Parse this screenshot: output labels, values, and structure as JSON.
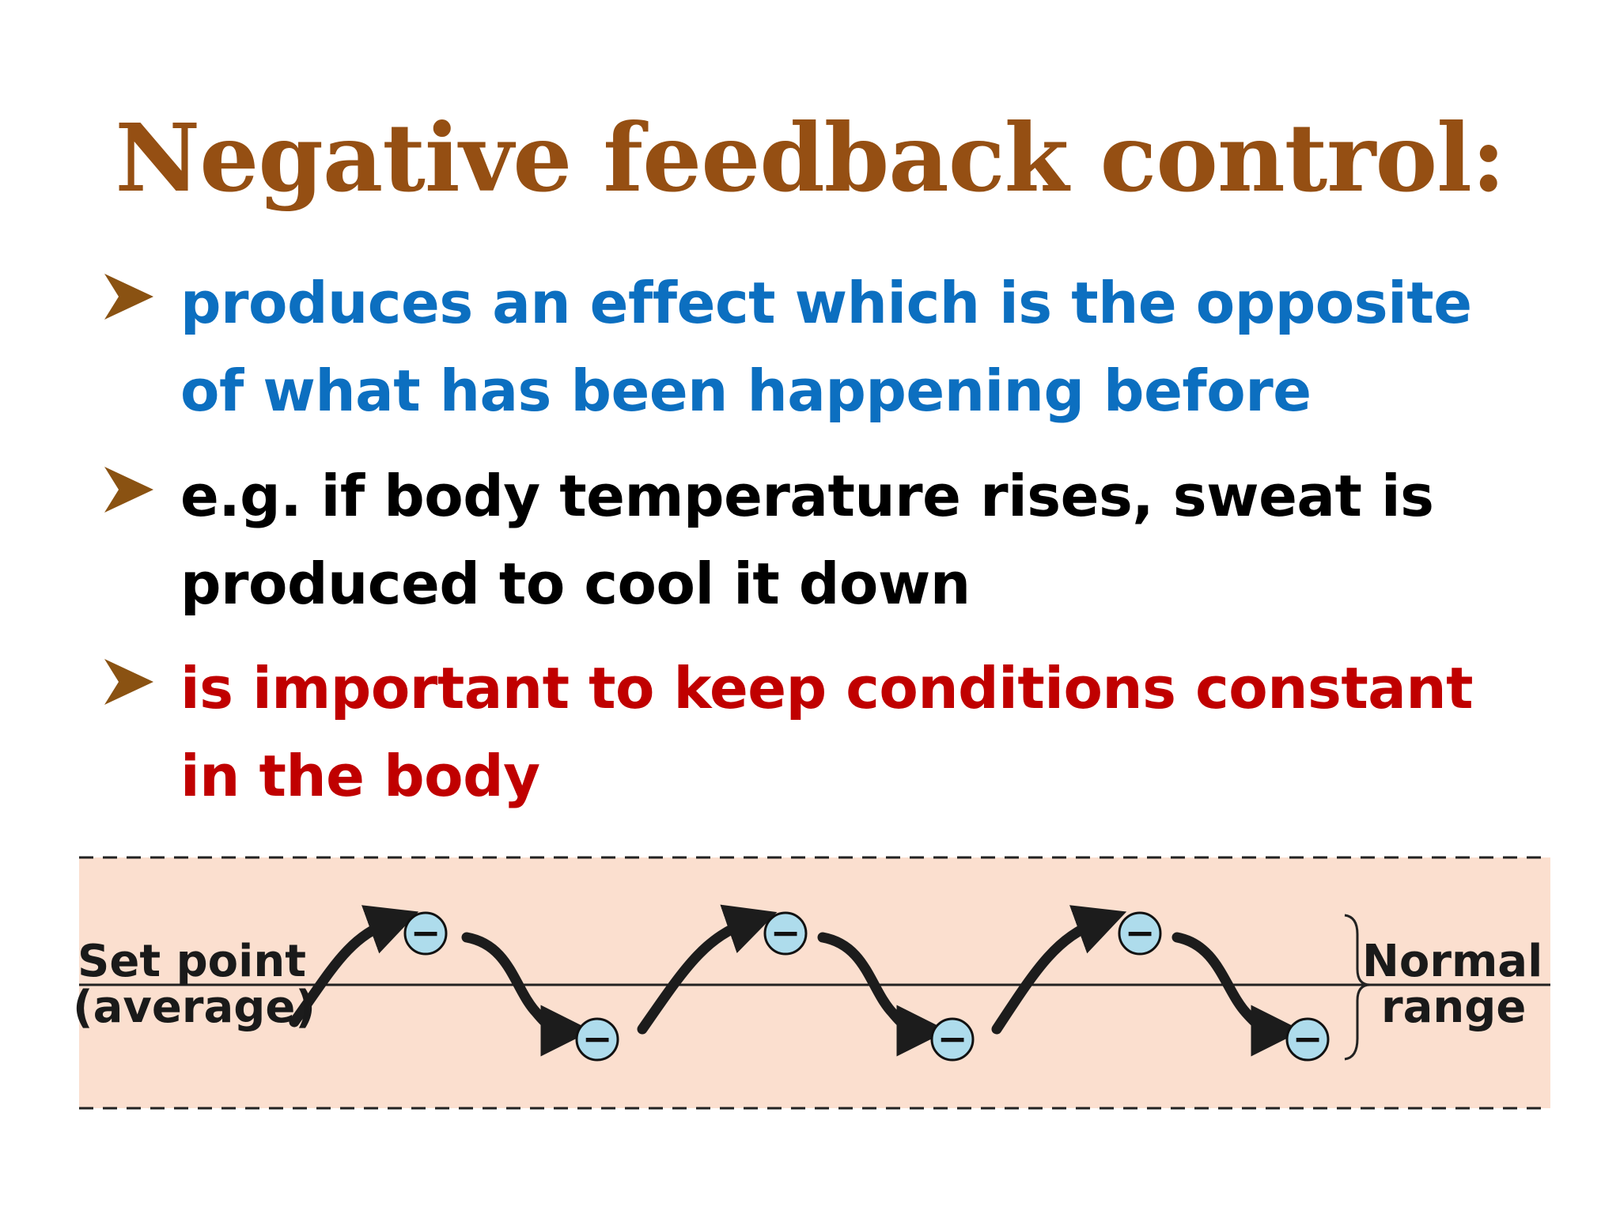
{
  "slide": {
    "title": "Negative feedback control:",
    "title_color": "#954f13",
    "arrow_color": "#8a5212",
    "bullets": [
      {
        "text": "produces an effect which is the opposite of what has been happening before",
        "color": "#0c6fc0"
      },
      {
        "text": "e.g. if body temperature rises, sweat is produced to cool it down",
        "color": "#000000"
      },
      {
        "text": "is important to keep conditions constant in the body",
        "color": "#c00000"
      }
    ]
  },
  "diagram": {
    "set_point_line1": "Set point",
    "set_point_line2": "(average)",
    "normal_range_line1": "Normal",
    "normal_range_line2": "range",
    "minus_symbol": "−",
    "band_color": "#fbdfcf",
    "bubble_color": "#aedcec",
    "arrow_color": "#1c1c1c"
  }
}
